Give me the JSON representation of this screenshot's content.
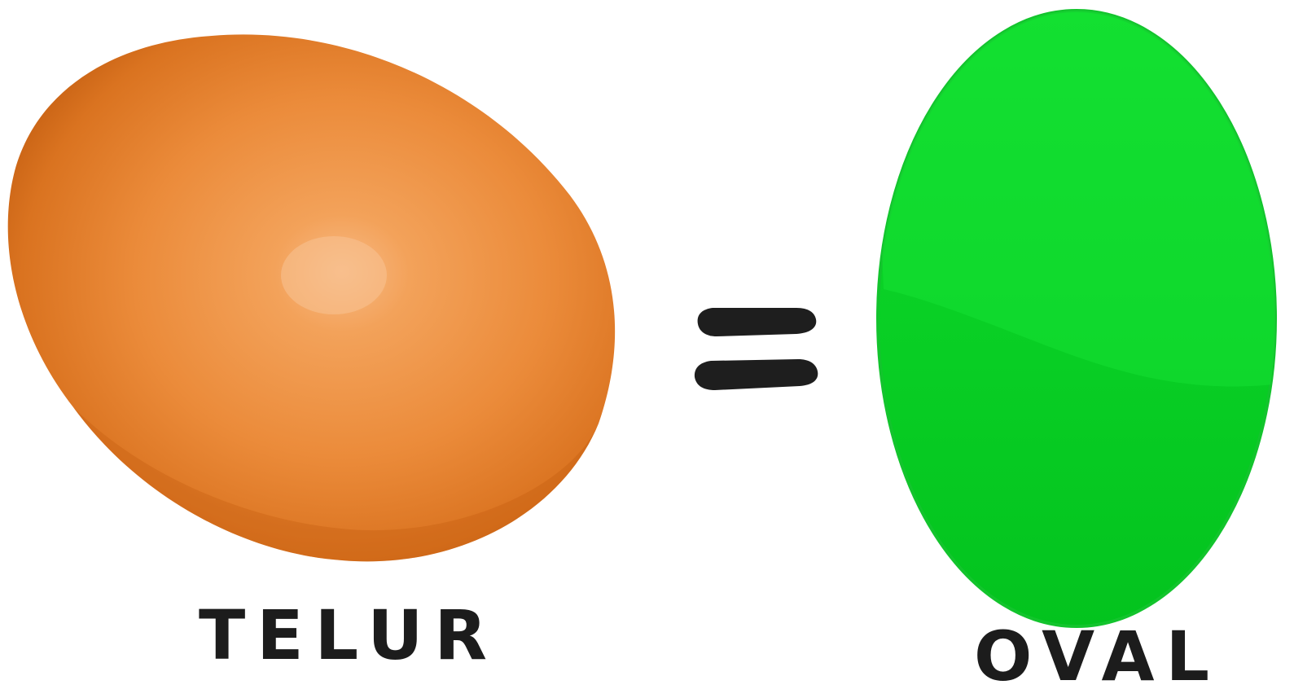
{
  "labels": {
    "egg": "TELUR",
    "shape": "OVAL"
  },
  "symbol": {
    "name": "equals-sign"
  },
  "colors": {
    "egg_base": "#E27F2E",
    "egg_highlight": "#F6B47C",
    "egg_shadow": "#C7600F",
    "oval_fill": "#05CC22",
    "oval_top_fill": "#0BDA2A",
    "oval_stroke": "#13C42D",
    "equals": "#1E1E1E",
    "text": "#1C1C1C"
  }
}
